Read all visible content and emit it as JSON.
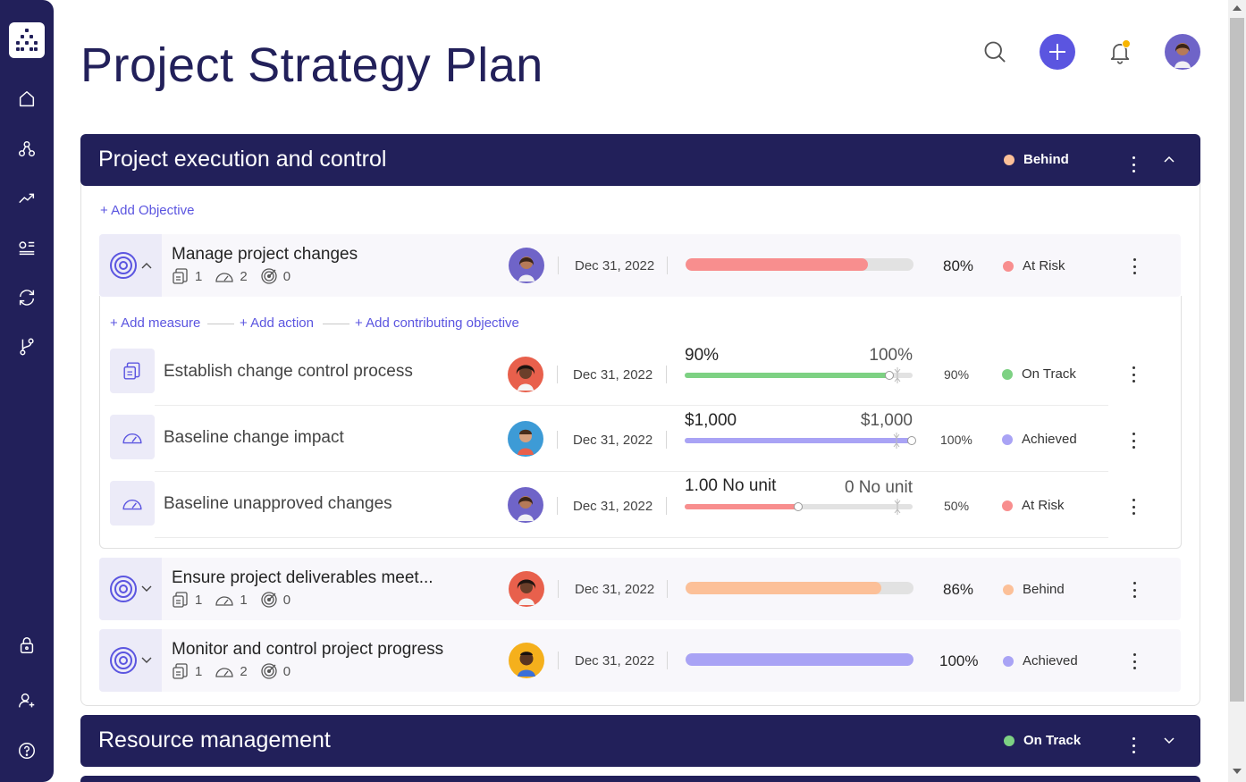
{
  "page": {
    "title": "Project Strategy Plan"
  },
  "sidebar": {
    "items": [
      {
        "name": "home-icon"
      },
      {
        "name": "hierarchy-icon"
      },
      {
        "name": "trending-icon"
      },
      {
        "name": "list-check-icon"
      },
      {
        "name": "sync-icon"
      },
      {
        "name": "branch-icon"
      },
      {
        "name": "lock-icon"
      },
      {
        "name": "add-user-icon"
      },
      {
        "name": "help-icon"
      }
    ]
  },
  "colors": {
    "navy": "#22205a",
    "accent": "#5b55e0",
    "at_risk": "#f88e8e",
    "behind": "#fcc098",
    "on_track": "#7dd183",
    "achieved": "#a9a3f5"
  },
  "groups": [
    {
      "title": "Project execution and control",
      "status": "Behind"
    },
    {
      "title": "Resource management",
      "status": "On Track"
    }
  ],
  "links": {
    "add_objective": "+ Add Objective",
    "add_measure": "+ Add measure",
    "add_action": "+ Add action",
    "add_contributing": "+ Add contributing objective"
  },
  "objectives": [
    {
      "name": "Manage project changes",
      "actions": "1",
      "measures": "2",
      "objectives": "0",
      "date": "Dec 31, 2022",
      "progress": 80,
      "percent": "80%",
      "status": "At Risk"
    },
    {
      "name": "Ensure project deliverables meet...",
      "actions": "1",
      "measures": "1",
      "objectives": "0",
      "date": "Dec 31, 2022",
      "progress": 86,
      "percent": "86%",
      "status": "Behind"
    },
    {
      "name": "Monitor and control project progress",
      "actions": "1",
      "measures": "2",
      "objectives": "0",
      "date": "Dec 31, 2022",
      "progress": 100,
      "percent": "100%",
      "status": "Achieved"
    }
  ],
  "children": [
    {
      "name": "Establish change control process",
      "date": "Dec 31, 2022",
      "current": "90%",
      "target": "100%",
      "progress": 90,
      "percent": "90%",
      "status": "On Track"
    },
    {
      "name": "Baseline change impact",
      "date": "Dec 31, 2022",
      "current": "$1,000",
      "target": "$1,000",
      "progress": 100,
      "percent": "100%",
      "status": "Achieved"
    },
    {
      "name": "Baseline unapproved changes",
      "date": "Dec 31, 2022",
      "current": "1.00 No unit",
      "target": "0 No unit",
      "progress": 50,
      "percent": "50%",
      "status": "At Risk"
    }
  ]
}
